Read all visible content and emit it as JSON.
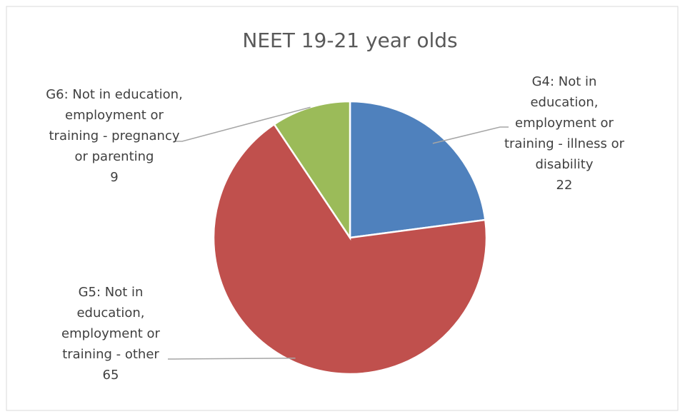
{
  "chart_data": {
    "type": "pie",
    "title": "NEET 19-21 year olds",
    "categories": [
      "G4: Not in education, employment or training - illness or disability",
      "G5: Not in education, employment or training - other",
      "G6: Not in education, employment or training - pregnancy or parenting"
    ],
    "values": [
      22,
      65,
      9
    ],
    "colors": [
      "#4f81bd",
      "#c0504d",
      "#9bbb59"
    ]
  }
}
